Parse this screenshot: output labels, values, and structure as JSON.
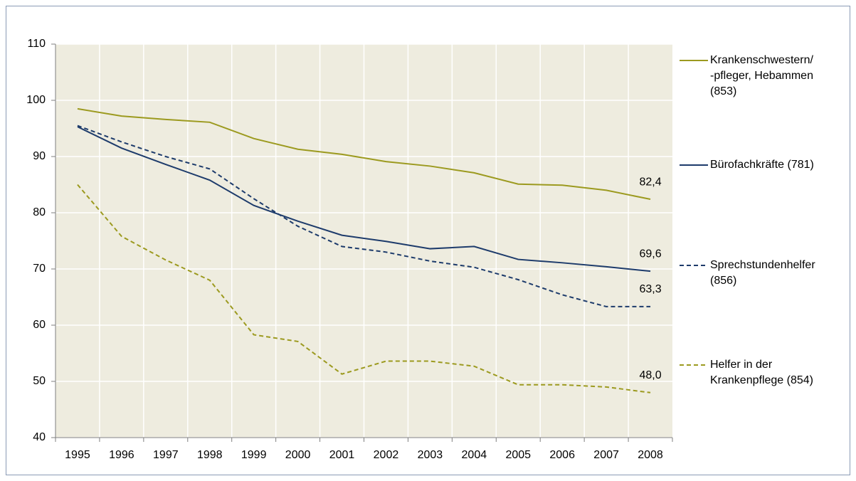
{
  "chart_data": {
    "type": "line",
    "categories": [
      "1995",
      "1996",
      "1997",
      "1998",
      "1999",
      "2000",
      "2001",
      "2002",
      "2003",
      "2004",
      "2005",
      "2006",
      "2007",
      "2008"
    ],
    "ylim": [
      40,
      110
    ],
    "yticks": [
      40,
      50,
      60,
      70,
      80,
      90,
      100,
      110
    ],
    "grid": true,
    "legend": "right",
    "series": [
      {
        "name": "Krankenschwestern/\n-pfleger, Hebammen\n(853)",
        "color": "#9c9a1f",
        "dash": false,
        "values": [
          98.5,
          97.2,
          96.6,
          96.1,
          93.2,
          91.3,
          90.4,
          89.1,
          88.3,
          87.1,
          85.1,
          84.9,
          84.0,
          82.4
        ],
        "value_labels": [
          null,
          null,
          null,
          null,
          null,
          null,
          null,
          null,
          null,
          null,
          null,
          null,
          null,
          "82,4"
        ]
      },
      {
        "name": "Bürofachkräfte (781)",
        "color": "#1d3b6b",
        "dash": false,
        "values": [
          95.3,
          91.5,
          88.6,
          85.8,
          81.3,
          78.5,
          76.0,
          74.9,
          73.6,
          74.0,
          71.7,
          71.1,
          70.4,
          69.6
        ],
        "value_labels": [
          null,
          null,
          null,
          null,
          null,
          null,
          null,
          null,
          null,
          null,
          null,
          null,
          null,
          "69,6"
        ]
      },
      {
        "name": "Sprechstundenhelfer\n(856)",
        "color": "#1d3b6b",
        "dash": true,
        "values": [
          95.5,
          92.6,
          90.0,
          87.8,
          82.5,
          77.6,
          74.0,
          73.0,
          71.4,
          70.3,
          68.1,
          65.4,
          63.3,
          63.3
        ],
        "value_labels": [
          null,
          null,
          null,
          null,
          null,
          null,
          null,
          null,
          null,
          null,
          null,
          null,
          null,
          "63,3"
        ]
      },
      {
        "name": "Helfer in der\nKrankenpflege (854)",
        "color": "#9c9a1f",
        "dash": true,
        "values": [
          85.0,
          75.8,
          71.6,
          68.0,
          58.3,
          57.1,
          51.3,
          53.6,
          53.6,
          52.7,
          49.4,
          49.4,
          49.0,
          48.0
        ],
        "value_labels": [
          null,
          null,
          null,
          null,
          null,
          null,
          null,
          null,
          null,
          null,
          null,
          null,
          null,
          "48,0"
        ]
      }
    ]
  }
}
